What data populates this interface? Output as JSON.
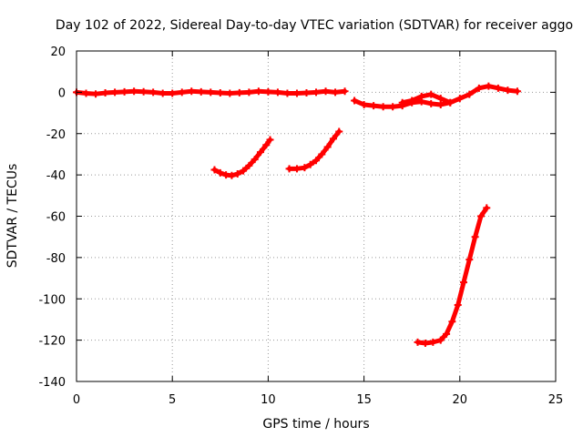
{
  "chart_data": {
    "type": "scatter",
    "title": "Day 102 of 2022, Sidereal Day-to-day VTEC variation (SDTVAR) for receiver aggo",
    "xlabel": "GPS time / hours",
    "ylabel": "SDTVAR / TECUs",
    "xlim": [
      0,
      25
    ],
    "ylim": [
      -140,
      20
    ],
    "xticks": [
      0,
      5,
      10,
      15,
      20,
      25
    ],
    "yticks": [
      20,
      0,
      -20,
      -40,
      -60,
      -80,
      -100,
      -120,
      -140
    ],
    "grid": true,
    "marker": "+",
    "color": "#ff0000",
    "series": [
      {
        "name": "segment-1",
        "x": [
          0,
          0.5,
          1,
          1.5,
          2,
          2.5,
          3,
          3.5,
          4,
          4.5,
          5,
          5.5,
          6,
          6.5,
          7,
          7.5,
          8,
          8.5,
          9,
          9.5,
          10,
          10.5,
          11,
          11.5,
          12,
          12.5,
          13,
          13.5,
          14
        ],
        "y": [
          0,
          -0.5,
          -0.8,
          -0.3,
          0,
          0.2,
          0.5,
          0.3,
          0,
          -0.5,
          -0.5,
          0,
          0.5,
          0.2,
          0,
          -0.3,
          -0.5,
          -0.2,
          0,
          0.5,
          0.2,
          0,
          -0.5,
          -0.5,
          -0.3,
          0,
          0.5,
          0,
          0.5
        ]
      },
      {
        "name": "segment-2",
        "x": [
          14.5,
          15,
          15.5,
          16,
          16.5,
          17,
          17.5,
          18,
          18.5,
          19,
          19.5,
          20,
          20.5,
          21,
          21.5,
          22,
          22.5,
          23
        ],
        "y": [
          -4,
          -6,
          -6.5,
          -7,
          -7,
          -6.5,
          -5,
          -4.5,
          -5.5,
          -6,
          -5,
          -3,
          -1,
          2,
          3,
          2,
          1,
          0.5
        ]
      },
      {
        "name": "segment-3",
        "x": [
          17,
          17.5,
          18,
          18.5,
          19,
          19.5
        ],
        "y": [
          -5,
          -4,
          -2,
          -1,
          -3,
          -5
        ]
      },
      {
        "name": "segment-4",
        "x": [
          7.2,
          7.5,
          7.8,
          8.1,
          8.4,
          8.7,
          9,
          9.3,
          9.6,
          9.9,
          10.1
        ],
        "y": [
          -37.5,
          -39,
          -40,
          -40.3,
          -39.5,
          -38,
          -35.5,
          -32.5,
          -29,
          -25.5,
          -23
        ]
      },
      {
        "name": "segment-5",
        "x": [
          11.1,
          11.5,
          11.9,
          12.2,
          12.5,
          12.8,
          13.1,
          13.4,
          13.7
        ],
        "y": [
          -37,
          -37,
          -36.5,
          -35,
          -33,
          -30,
          -26.5,
          -22.5,
          -19
        ]
      },
      {
        "name": "segment-6",
        "x": [
          17.8,
          18.2,
          18.6,
          19,
          19.3,
          19.6,
          19.9,
          20.2,
          20.5,
          20.8,
          21.1,
          21.4
        ],
        "y": [
          -121,
          -121.5,
          -121,
          -120,
          -117,
          -111,
          -103,
          -92,
          -81,
          -70,
          -60,
          -56
        ]
      }
    ]
  }
}
